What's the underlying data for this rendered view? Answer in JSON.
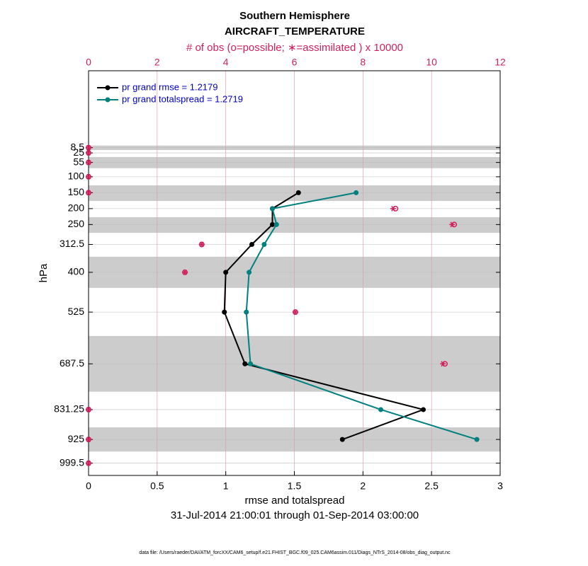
{
  "chart_data": {
    "type": "line",
    "title": "Southern Hemisphere",
    "subtitle": "AIRCRAFT_TEMPERATURE",
    "x2label": "# of obs (o=possible; ∗=assimilated ) x 10000",
    "ylabel": "hPa",
    "xlabel": "rmse and totalspread",
    "date_range": "31-Jul-2014 21:00:01 through 01-Sep-2014 03:00:00",
    "footnote": "data file: /Users/raeder/DAI/ATM_forcXX/CAM6_setup/f.e21.FHIST_BGC.f09_025.CAM6assim.011/Diags_NTrS_2014-08/obs_diag_output.nc",
    "y": [
      8.5,
      25,
      55,
      100,
      150,
      200,
      250,
      312.5,
      400,
      525,
      687.5,
      831.25,
      925,
      999.5
    ],
    "yticks": [
      8.5,
      25,
      55,
      100,
      150,
      200,
      250,
      312.5,
      400,
      525,
      687.5,
      831.25,
      925,
      999.5
    ],
    "ylim": [
      1038,
      -233
    ],
    "xlim": [
      0,
      3
    ],
    "xticks": [
      0,
      0.5,
      1,
      1.5,
      2,
      2.5,
      3
    ],
    "x2lim": [
      0,
      12
    ],
    "x2ticks": [
      0,
      2,
      4,
      6,
      8,
      10,
      12
    ],
    "x2grid_color": "#d9a0b4",
    "band_color": "#cccccc",
    "bands": [
      [
        2,
        16
      ],
      [
        38,
        73
      ],
      [
        127,
        176
      ],
      [
        227,
        276
      ],
      [
        351,
        449
      ],
      [
        600,
        775
      ],
      [
        887,
        963
      ]
    ],
    "legend": "upper left",
    "series": [
      {
        "name": "pr grand rmse = 1.2179",
        "color": "#000000",
        "values": [
          null,
          null,
          null,
          null,
          1.53,
          1.34,
          1.34,
          1.19,
          1.0,
          0.99,
          1.14,
          2.44,
          1.85,
          null
        ]
      },
      {
        "name": "pr grand totalspread = 1.2719",
        "color": "#008080",
        "values": [
          null,
          null,
          null,
          null,
          1.95,
          1.34,
          1.37,
          1.28,
          1.17,
          1.15,
          1.18,
          2.13,
          2.83,
          null
        ]
      }
    ],
    "obs_color": "#d11f5a",
    "obs_possible": [
      0,
      0,
      0,
      0,
      0,
      8.95,
      10.66,
      3.3,
      2.81,
      6.03,
      10.39,
      0,
      0,
      0
    ],
    "obs_assimilated": [
      0,
      0,
      0,
      0,
      0,
      8.88,
      10.6,
      3.3,
      2.81,
      6.03,
      10.33,
      0,
      0,
      0
    ]
  }
}
